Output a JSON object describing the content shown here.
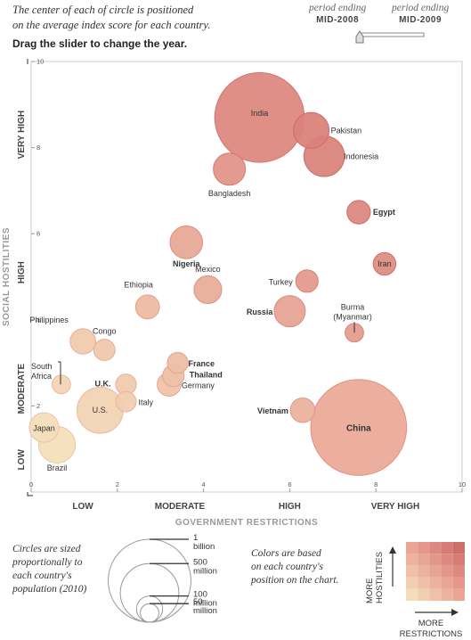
{
  "intro": {
    "line1": "The center of each of circle is positioned",
    "line2": "on the average index score for each country.",
    "instruction": "Drag the slider to change the year."
  },
  "slider": {
    "start_italic": "period ending",
    "start_label": "MID-2008",
    "end_italic": "period ending",
    "end_label": "MID-2009",
    "value": 0
  },
  "chart_data": {
    "type": "scatter",
    "xlabel": "GOVERNMENT RESTRICTIONS",
    "ylabel": "SOCIAL HOSTILITIES",
    "xlim": [
      0,
      10
    ],
    "ylim": [
      0,
      10
    ],
    "x_ticks": [
      "0",
      "2",
      "4",
      "6",
      "8",
      "10"
    ],
    "y_ticks": [
      "2",
      "4",
      "6",
      "8",
      "10"
    ],
    "x_bands": [
      {
        "label": "LOW",
        "center": 1.2
      },
      {
        "label": "MODERATE",
        "center": 3.45
      },
      {
        "label": "HIGH",
        "center": 6.0
      },
      {
        "label": "VERY HIGH",
        "center": 8.45
      }
    ],
    "y_bands": [
      {
        "label": "LOW",
        "center": 0.75
      },
      {
        "label": "MODERATE",
        "center": 2.4
      },
      {
        "label": "HIGH",
        "center": 5.1
      },
      {
        "label": "VERY HIGH",
        "center": 8.3
      }
    ],
    "points": [
      {
        "name": "India",
        "x": 5.3,
        "y": 8.7,
        "pop": 1170,
        "bold": false
      },
      {
        "name": "Pakistan",
        "x": 6.5,
        "y": 8.4,
        "pop": 185,
        "bold": false
      },
      {
        "name": "Indonesia",
        "x": 6.8,
        "y": 7.8,
        "pop": 240,
        "bold": false
      },
      {
        "name": "Bangladesh",
        "x": 4.6,
        "y": 7.5,
        "pop": 150,
        "bold": false
      },
      {
        "name": "Egypt",
        "x": 7.6,
        "y": 6.5,
        "pop": 80,
        "bold": true
      },
      {
        "name": "Nigeria",
        "x": 3.6,
        "y": 5.8,
        "pop": 155,
        "bold": true
      },
      {
        "name": "Iran",
        "x": 8.2,
        "y": 5.3,
        "pop": 75,
        "bold": false
      },
      {
        "name": "Mexico",
        "x": 4.1,
        "y": 4.7,
        "pop": 112,
        "bold": false
      },
      {
        "name": "Turkey",
        "x": 6.4,
        "y": 4.9,
        "pop": 73,
        "bold": false
      },
      {
        "name": "Ethiopia",
        "x": 2.7,
        "y": 4.3,
        "pop": 83,
        "bold": false
      },
      {
        "name": "Russia",
        "x": 6.0,
        "y": 4.2,
        "pop": 142,
        "bold": true
      },
      {
        "name": "Burma (Myanmar)",
        "x": 7.5,
        "y": 3.7,
        "pop": 50,
        "bold": false
      },
      {
        "name": "Philippines",
        "x": 1.2,
        "y": 3.5,
        "pop": 94,
        "bold": false
      },
      {
        "name": "Congo",
        "x": 1.7,
        "y": 3.3,
        "pop": 66,
        "bold": false
      },
      {
        "name": "France",
        "x": 3.4,
        "y": 3.0,
        "pop": 63,
        "bold": true
      },
      {
        "name": "Thailand",
        "x": 3.3,
        "y": 2.7,
        "pop": 68,
        "bold": true
      },
      {
        "name": "Germany",
        "x": 3.2,
        "y": 2.5,
        "pop": 82,
        "bold": false
      },
      {
        "name": "South Africa",
        "x": 0.7,
        "y": 2.5,
        "pop": 50,
        "bold": false
      },
      {
        "name": "U.K.",
        "x": 2.2,
        "y": 2.5,
        "pop": 62,
        "bold": true
      },
      {
        "name": "U.S.",
        "x": 1.6,
        "y": 1.9,
        "pop": 310,
        "bold": false
      },
      {
        "name": "Italy",
        "x": 2.2,
        "y": 2.1,
        "pop": 60,
        "bold": false
      },
      {
        "name": "Vietnam",
        "x": 6.3,
        "y": 1.9,
        "pop": 88,
        "bold": true
      },
      {
        "name": "China",
        "x": 7.6,
        "y": 1.5,
        "pop": 1340,
        "bold": true
      },
      {
        "name": "Japan",
        "x": 0.3,
        "y": 1.5,
        "pop": 127,
        "bold": false
      },
      {
        "name": "Brazil",
        "x": 0.6,
        "y": 1.1,
        "pop": 195,
        "bold": false
      }
    ]
  },
  "size_legend": {
    "text": [
      "Circles are sized",
      "proportionally to",
      "each country's",
      "population (2010)"
    ],
    "items": [
      {
        "pop": 1000,
        "line1": "1",
        "line2": "billion"
      },
      {
        "pop": 500,
        "line1": "500",
        "line2": "million"
      },
      {
        "pop": 100,
        "line1": "100",
        "line2": "million"
      },
      {
        "pop": 50,
        "line1": "50",
        "line2": "million"
      }
    ]
  },
  "color_legend": {
    "text": [
      "Colors are based",
      "on each country's",
      "position on the chart."
    ],
    "y_label_1": "MORE",
    "y_label_2": "HOSTILITIES",
    "x_label_1": "MORE",
    "x_label_2": "RESTRICTIONS"
  }
}
